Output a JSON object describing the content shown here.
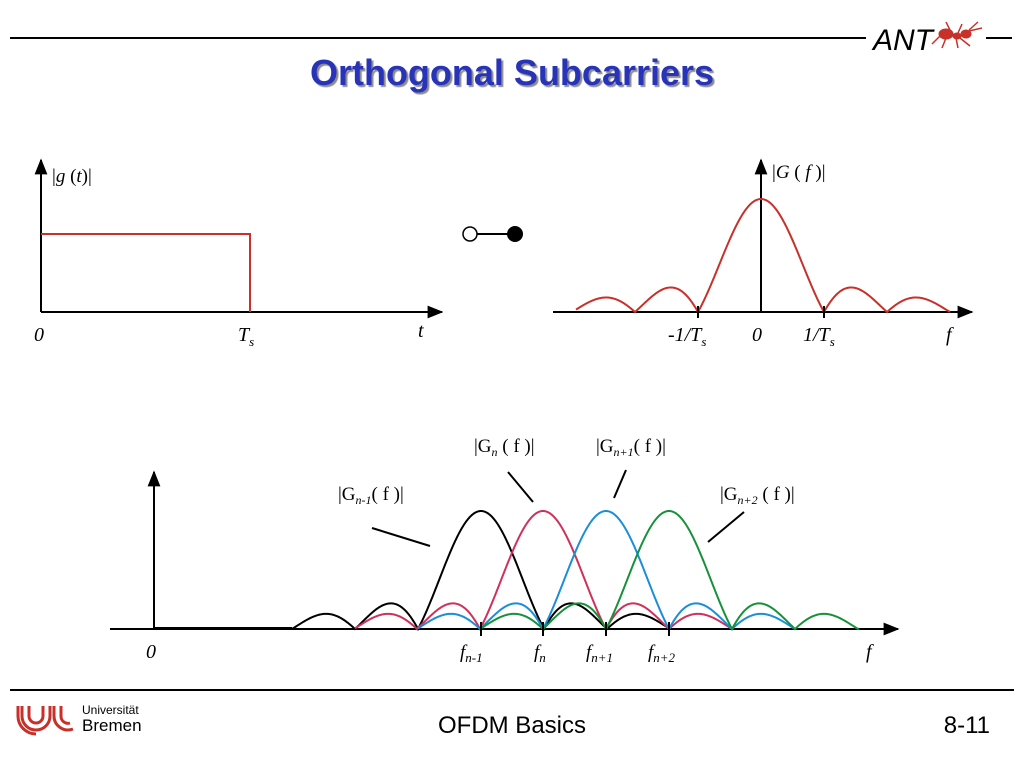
{
  "header": {
    "title": "Orthogonal Subcarriers",
    "logo_text": "ANT"
  },
  "top_left_plot": {
    "ylabel_pre": "|",
    "ylabel_g": "g",
    "ylabel_paren_open": " (",
    "ylabel_t": "t",
    "ylabel_paren_close": ")|",
    "origin": "0",
    "ts_main": "T",
    "ts_sub": "s",
    "t_label": "t"
  },
  "top_right_plot": {
    "ylabel_pre": "|",
    "ylabel_G": "G",
    "ylabel_mid": " ( ",
    "ylabel_f": "f",
    "ylabel_post": " )|",
    "neg_tick_main": "-1/T",
    "neg_tick_sub": "s",
    "zero_tick": "0",
    "pos_tick_main": "1/T",
    "pos_tick_sub": "s",
    "f_label": "f"
  },
  "bottom_plot": {
    "label_gn_pre": "|G",
    "label_gn_sub": "n",
    "label_gn_post": " ( f )|",
    "label_gn1_pre": "|G",
    "label_gn1_sub": "n+1",
    "label_gn1_post": "( f )|",
    "label_gnm1_pre": "|G",
    "label_gnm1_sub": "n-1",
    "label_gnm1_post": "( f )|",
    "label_gn2_pre": "|G",
    "label_gn2_sub": "n+2",
    "label_gn2_post": " ( f )|",
    "origin": "0",
    "f_label": "f",
    "ticks": [
      {
        "main": "f",
        "sub": "n-1"
      },
      {
        "main": "f",
        "sub": "n"
      },
      {
        "main": "f",
        "sub": "n+1"
      },
      {
        "main": "f",
        "sub": "n+2"
      }
    ]
  },
  "colors": {
    "title": "#2733b8",
    "red": "#c8302a",
    "black": "#000000",
    "crimson": "#d0305a",
    "blue": "#1a8ed8",
    "green": "#17913a"
  },
  "footer": {
    "university_line1": "Universität",
    "university_line2": "Bremen",
    "title": "OFDM Basics",
    "page": "8-11"
  }
}
